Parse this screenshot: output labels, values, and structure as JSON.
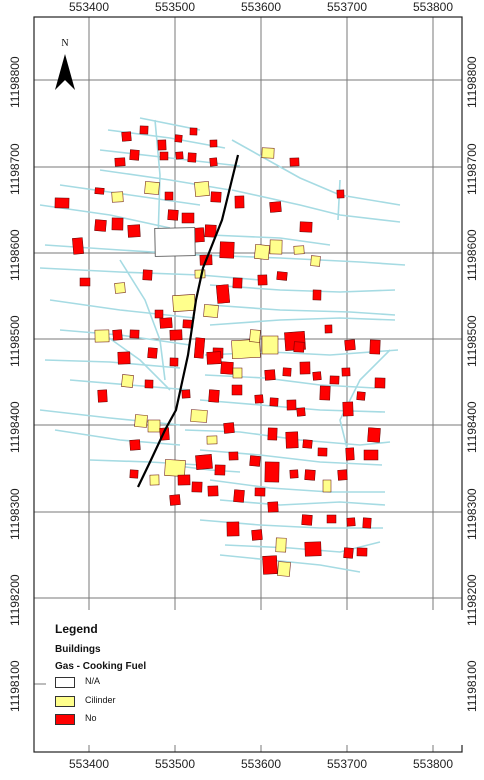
{
  "map": {
    "north_label": "N",
    "x_ticks": [
      "553400",
      "553500",
      "553600",
      "553700",
      "553800"
    ],
    "y_ticks": [
      "11198800",
      "11198700",
      "11198600",
      "11198500",
      "11198400",
      "11198300",
      "11198200",
      "11198100"
    ],
    "colors": {
      "frame": "#222222",
      "grid": "#7a7a7a",
      "streets": "#a6dbe3",
      "road": "#000000",
      "building_edge": "#5a0000"
    }
  },
  "legend": {
    "title": "Legend",
    "layer": "Buildings",
    "field": "Gas - Cooking Fuel",
    "items": [
      {
        "label": "N/A",
        "color": "#ffffff"
      },
      {
        "label": "Cilinder",
        "color": "#ffff8c"
      },
      {
        "label": "No",
        "color": "#ff0000"
      }
    ]
  }
}
